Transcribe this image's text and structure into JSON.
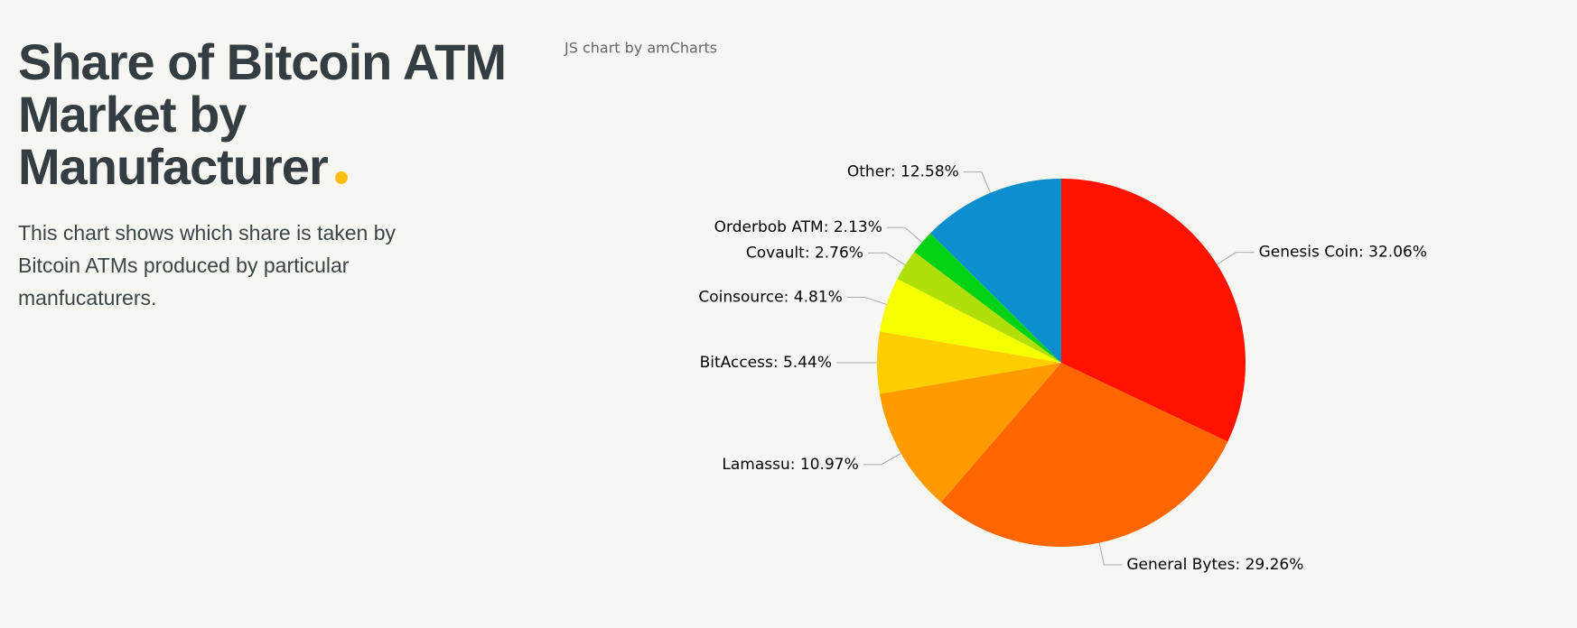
{
  "header": {
    "title": "Share of Bitcoin ATM Market by Manufacturer",
    "description": "This chart shows which share is taken by Bitcoin ATMs produced by particular manfucaturers."
  },
  "chart_data": {
    "type": "pie",
    "credit": "JS chart by amCharts",
    "values": [
      32.06,
      29.26,
      10.97,
      5.44,
      4.81,
      2.76,
      2.13,
      12.58
    ],
    "value_labels": [
      "Genesis Coin: 32.06%",
      "General Bytes: 29.26%",
      "Lamassu: 10.97%",
      "BitAccess: 5.44%",
      "Coinsource: 4.81%",
      "Covault: 2.76%",
      "Orderbob ATM: 2.13%",
      "Other: 12.58%"
    ],
    "colors": [
      "#ff1200",
      "#ff6600",
      "#ff9a00",
      "#ffce00",
      "#f5ff00",
      "#b0df0a",
      "#04d215",
      "#0d8ecf"
    ]
  }
}
